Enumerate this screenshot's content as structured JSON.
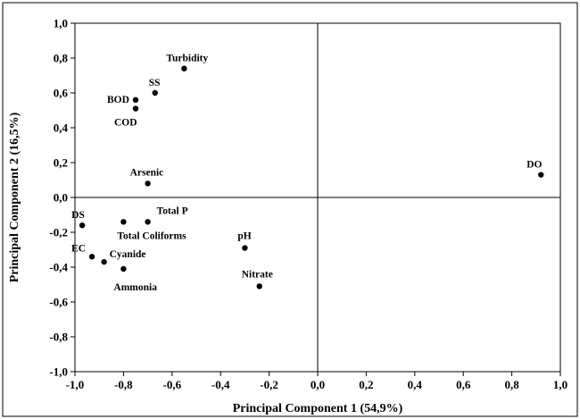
{
  "chart_data": {
    "type": "scatter",
    "title": "",
    "xlabel": "Principal Component 1 (54,9%)",
    "ylabel": "Principal Component 2 (16,5%)",
    "xlim": [
      -1.0,
      1.0
    ],
    "ylim": [
      -1.0,
      1.0
    ],
    "grid": false,
    "reference_lines": {
      "x": 0.0,
      "y": 0.0
    },
    "x_ticks": [
      "-1,0",
      "-0,8",
      "-0,6",
      "-0,4",
      "-0,2",
      "0,0",
      "0,2",
      "0,4",
      "0,6",
      "0,8",
      "1,0"
    ],
    "y_ticks": [
      "1,0",
      "0,8",
      "0,6",
      "0,4",
      "0,2",
      "0,0",
      "-0,2",
      "-0,4",
      "-0,6",
      "-0,8",
      "-1,0"
    ],
    "points": [
      {
        "label": "Turbidity",
        "x": -0.55,
        "y": 0.74
      },
      {
        "label": "SS",
        "x": -0.67,
        "y": 0.6
      },
      {
        "label": "BOD",
        "x": -0.75,
        "y": 0.56
      },
      {
        "label": "COD",
        "x": -0.75,
        "y": 0.51
      },
      {
        "label": "Arsenic",
        "x": -0.7,
        "y": 0.08
      },
      {
        "label": "DO",
        "x": 0.92,
        "y": 0.13
      },
      {
        "label": "DS",
        "x": -0.97,
        "y": -0.16
      },
      {
        "label": "Total P",
        "x": -0.7,
        "y": -0.14
      },
      {
        "label": "Total Coliforms",
        "x": -0.8,
        "y": -0.14
      },
      {
        "label": "EC",
        "x": -0.93,
        "y": -0.34
      },
      {
        "label": "Cyanide",
        "x": -0.88,
        "y": -0.37
      },
      {
        "label": "Ammonia",
        "x": -0.8,
        "y": -0.41
      },
      {
        "label": "pH",
        "x": -0.3,
        "y": -0.29
      },
      {
        "label": "Nitrate",
        "x": -0.24,
        "y": -0.51
      }
    ]
  }
}
